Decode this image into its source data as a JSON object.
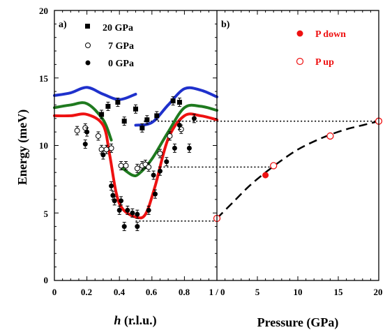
{
  "chart_data": [
    {
      "panel": "a)",
      "type": "scatter",
      "xlabel_italic": "h",
      "xlabel_rest": " (r.l.u.)",
      "ylabel": "Energy (meV)",
      "xlim": [
        0,
        1
      ],
      "ylim": [
        0,
        20
      ],
      "xticks": [
        "0",
        "0.2",
        "0.4",
        "0.6",
        "0.8"
      ],
      "yticks": [
        "0",
        "5",
        "10",
        "15",
        "20"
      ],
      "legend_placement": "top-left",
      "series": [
        {
          "name": "20 GPa",
          "marker": "square-filled",
          "points": [
            [
              0.29,
              12.3
            ],
            [
              0.33,
              12.9
            ],
            [
              0.39,
              13.2
            ],
            [
              0.43,
              11.8
            ],
            [
              0.5,
              12.7
            ],
            [
              0.54,
              11.3
            ],
            [
              0.57,
              11.9
            ],
            [
              0.63,
              12.2
            ],
            [
              0.73,
              13.3
            ],
            [
              0.77,
              13.2
            ]
          ]
        },
        {
          "name": "7 GPa",
          "marker": "circle-open",
          "points": [
            [
              0.14,
              11.1
            ],
            [
              0.19,
              11.3
            ],
            [
              0.27,
              10.7
            ],
            [
              0.29,
              9.7
            ],
            [
              0.32,
              9.7
            ],
            [
              0.35,
              9.8
            ],
            [
              0.41,
              8.5
            ],
            [
              0.44,
              8.5
            ],
            [
              0.51,
              8.3
            ],
            [
              0.54,
              8.5
            ],
            [
              0.56,
              8.6
            ],
            [
              0.58,
              8.4
            ],
            [
              0.65,
              9.4
            ],
            [
              0.71,
              10.7
            ],
            [
              0.78,
              11.2
            ]
          ]
        },
        {
          "name": "0 GPa",
          "marker": "circle-filled",
          "points": [
            [
              0.19,
              10.1
            ],
            [
              0.2,
              11.0
            ],
            [
              0.3,
              9.3
            ],
            [
              0.35,
              7.0
            ],
            [
              0.36,
              6.3
            ],
            [
              0.37,
              5.9
            ],
            [
              0.4,
              5.2
            ],
            [
              0.41,
              5.9
            ],
            [
              0.43,
              4.0
            ],
            [
              0.45,
              5.2
            ],
            [
              0.48,
              5.0
            ],
            [
              0.51,
              4.0
            ],
            [
              0.51,
              4.9
            ],
            [
              0.58,
              5.2
            ],
            [
              0.61,
              7.8
            ],
            [
              0.62,
              6.4
            ],
            [
              0.65,
              8.1
            ],
            [
              0.69,
              8.8
            ],
            [
              0.74,
              9.8
            ],
            [
              0.77,
              11.5
            ],
            [
              0.83,
              9.8
            ],
            [
              0.86,
              12.0
            ]
          ]
        }
      ],
      "curves": [
        {
          "color": "#1f31cc",
          "segments": [
            [
              [
                0,
                13.7
              ],
              [
                0.1,
                13.9
              ],
              [
                0.2,
                14.3
              ],
              [
                0.3,
                13.8
              ],
              [
                0.4,
                13.4
              ],
              [
                0.5,
                13.8
              ]
            ],
            [
              [
                0.5,
                11.5
              ],
              [
                0.6,
                11.7
              ],
              [
                0.7,
                13.0
              ],
              [
                0.8,
                14.2
              ],
              [
                0.9,
                14.1
              ],
              [
                1.0,
                13.6
              ]
            ]
          ]
        },
        {
          "color": "#1f7a1f",
          "segments": [
            [
              [
                0,
                12.8
              ],
              [
                0.1,
                13.0
              ],
              [
                0.2,
                13.1
              ],
              [
                0.3,
                11.9
              ],
              [
                0.35,
                10.4
              ]
            ],
            [
              [
                0.42,
                8.3
              ],
              [
                0.48,
                7.8
              ],
              [
                0.52,
                7.9
              ],
              [
                0.6,
                9.0
              ],
              [
                0.7,
                11.0
              ],
              [
                0.8,
                12.8
              ],
              [
                0.9,
                12.9
              ],
              [
                1.0,
                12.6
              ]
            ]
          ]
        },
        {
          "color": "#ee1111",
          "segments": [
            [
              [
                0,
                12.2
              ],
              [
                0.1,
                12.2
              ],
              [
                0.2,
                12.3
              ],
              [
                0.3,
                11.5
              ],
              [
                0.34,
                9.3
              ],
              [
                0.38,
                6.5
              ],
              [
                0.42,
                5.3
              ],
              [
                0.5,
                4.7
              ],
              [
                0.56,
                4.9
              ],
              [
                0.62,
                7.0
              ],
              [
                0.7,
                10.5
              ],
              [
                0.8,
                12.2
              ],
              [
                0.9,
                12.2
              ],
              [
                1.0,
                11.9
              ]
            ]
          ]
        }
      ]
    },
    {
      "panel": "b)",
      "type": "scatter",
      "xlabel": "Pressure (GPa)",
      "xlim": [
        0,
        20
      ],
      "ylim": [
        0,
        20
      ],
      "xticks": [
        "5",
        "10",
        "15",
        "20"
      ],
      "corner_tick": "1 / 0",
      "legend_placement": "top-right",
      "series": [
        {
          "name": "P down",
          "marker": "circle-filled",
          "color": "#ee1111",
          "points": [
            [
              6,
              7.8
            ]
          ]
        },
        {
          "name": "P up",
          "marker": "circle-open",
          "color": "#ee1111",
          "points": [
            [
              0,
              4.6
            ],
            [
              7,
              8.5
            ],
            [
              14,
              10.7
            ],
            [
              20,
              11.8
            ]
          ]
        }
      ],
      "fit_curve": [
        [
          0,
          4.6
        ],
        [
          2,
          5.8
        ],
        [
          4,
          7.0
        ],
        [
          6,
          8.0
        ],
        [
          8,
          8.9
        ],
        [
          10,
          9.7
        ],
        [
          12,
          10.3
        ],
        [
          14,
          10.8
        ],
        [
          16,
          11.2
        ],
        [
          18,
          11.5
        ],
        [
          20,
          11.8
        ]
      ]
    }
  ],
  "guide_lines": [
    {
      "h": 0.55,
      "energy": 11.8,
      "pressure": 20
    },
    {
      "h": 0.65,
      "energy": 8.4,
      "pressure": 7
    },
    {
      "h": 0.5,
      "energy": 4.4,
      "pressure": 0
    }
  ],
  "colors": {
    "axis": "#000000",
    "marker": "#000000",
    "red": "#ee1111"
  }
}
